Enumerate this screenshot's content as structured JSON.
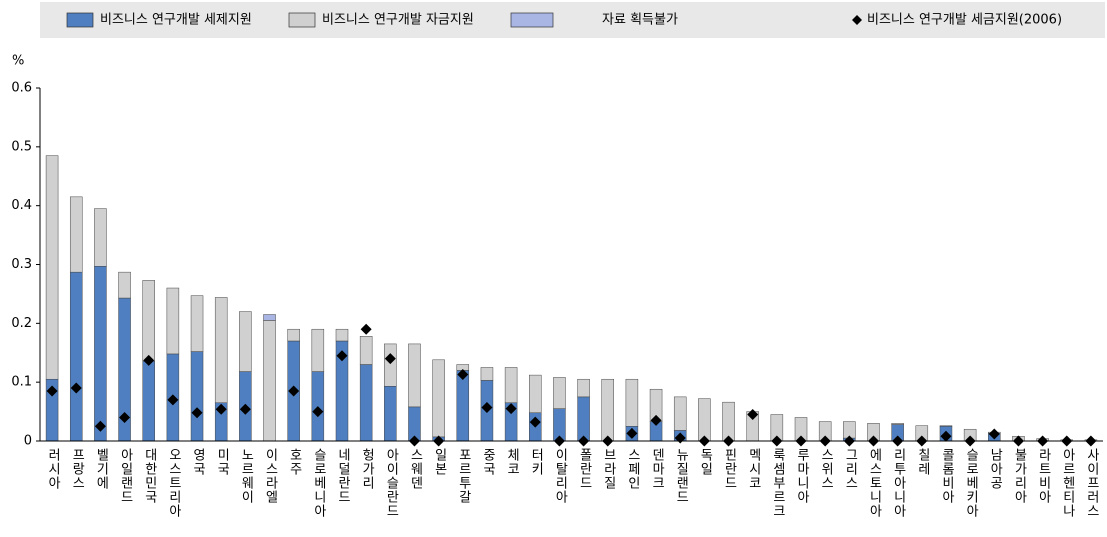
{
  "chart_data": {
    "type": "bar",
    "stacked": true,
    "y_label": "%",
    "categories": [
      "러시아",
      "프랑스",
      "벨기에",
      "아일랜드",
      "대한민국",
      "오스트리아",
      "영국",
      "미국",
      "노르웨이",
      "이스라엘",
      "호주",
      "슬로베니아",
      "네덜란드",
      "헝가리",
      "아이슬란드",
      "스웨덴",
      "일본",
      "포르투갈",
      "중국",
      "체코",
      "터키",
      "이탈리아",
      "폴란드",
      "브라질",
      "스페인",
      "덴마크",
      "뉴질랜드",
      "독일",
      "핀란드",
      "멕시코",
      "룩셈부르크",
      "루마니아",
      "스위스",
      "그리스",
      "에스토니아",
      "리투아니아",
      "칠레",
      "콜롬비아",
      "슬로베키아",
      "남아공",
      "불가리아",
      "라트비아",
      "아르헨티나",
      "사이프러스"
    ],
    "series": [
      {
        "name": "비즈니스 연구개발 세제지원",
        "color": "#4f7fc0",
        "values": [
          0.105,
          0.287,
          0.297,
          0.243,
          0.136,
          0.148,
          0.152,
          0.065,
          0.118,
          0,
          0.17,
          0.118,
          0.17,
          0.13,
          0.093,
          0.058,
          0.007,
          0.12,
          0.103,
          0.065,
          0.048,
          0.055,
          0.075,
          0,
          0.025,
          0.033,
          0.018,
          0,
          0,
          0,
          0,
          0,
          0,
          0.005,
          0,
          0.028,
          0,
          0.025,
          0,
          0.013,
          0,
          0,
          0,
          0
        ]
      },
      {
        "name": "비즈니스 연구개발 자금지원",
        "color": "#d0d0d0",
        "values": [
          0.38,
          0.128,
          0.098,
          0.044,
          0.137,
          0.112,
          0.095,
          0.179,
          0.102,
          0.205,
          0.02,
          0.072,
          0.02,
          0.048,
          0.072,
          0.107,
          0.131,
          0.01,
          0.022,
          0.06,
          0.064,
          0.053,
          0.03,
          0.105,
          0.08,
          0.055,
          0.057,
          0.072,
          0.066,
          0.05,
          0.045,
          0.04,
          0.033,
          0.028,
          0.03,
          0.002,
          0.026,
          0.001,
          0.02,
          0.002,
          0.008,
          0.004,
          0.002,
          0.002
        ]
      },
      {
        "name": "자료 획득불가",
        "color": "#a9b6e4",
        "values": [
          0,
          0,
          0,
          0,
          0,
          0,
          0,
          0,
          0,
          0.01,
          0,
          0,
          0,
          0,
          0,
          0,
          0,
          0,
          0,
          0,
          0,
          0,
          0,
          0,
          0,
          0,
          0,
          0,
          0,
          0,
          0,
          0,
          0,
          0,
          0,
          0,
          0,
          0,
          0,
          0,
          0,
          0,
          0,
          0
        ]
      },
      {
        "name": "비즈니스 연구개발 세금지원(2006)",
        "type": "scatter",
        "color": "#000000",
        "values": [
          0.085,
          0.09,
          0.025,
          0.04,
          0.137,
          0.07,
          0.048,
          0.054,
          0.054,
          null,
          0.085,
          0.05,
          0.145,
          0.19,
          0.14,
          0,
          0,
          0.113,
          0.057,
          0.055,
          0.032,
          0,
          0,
          0,
          0.013,
          0.035,
          0.005,
          0,
          0,
          0.045,
          0,
          0,
          0,
          0,
          0,
          0,
          0,
          0.008,
          0,
          0.012,
          0,
          0,
          0,
          0
        ]
      }
    ],
    "ylim": [
      0,
      0.6
    ],
    "yticks": [
      0,
      0.1,
      0.2,
      0.3,
      0.4,
      0.5,
      0.6
    ],
    "grid": false
  }
}
